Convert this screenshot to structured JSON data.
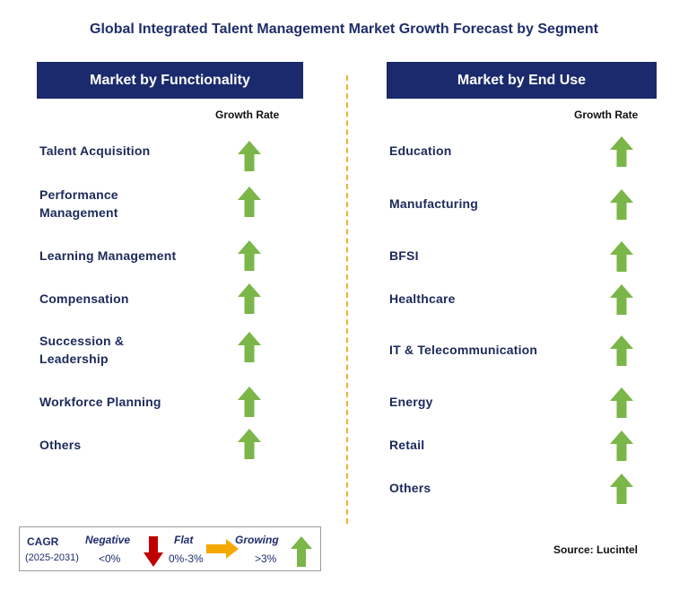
{
  "title": "Global Integrated Talent Management Market Growth Forecast by Segment",
  "left_panel": {
    "header": "Market by Functionality",
    "growth_rate_label": "Growth Rate",
    "items": [
      {
        "label": "Talent Acquisition",
        "trend": "growing"
      },
      {
        "label": "Performance\nManagement",
        "trend": "growing"
      },
      {
        "label": "Learning Management",
        "trend": "growing"
      },
      {
        "label": "Compensation",
        "trend": "growing"
      },
      {
        "label": "Succession &\nLeadership",
        "trend": "growing"
      },
      {
        "label": "Workforce Planning",
        "trend": "growing"
      },
      {
        "label": "Others",
        "trend": "growing"
      }
    ]
  },
  "right_panel": {
    "header": "Market by End Use",
    "growth_rate_label": "Growth Rate",
    "items": [
      {
        "label": "Education",
        "trend": "growing"
      },
      {
        "label": "Manufacturing",
        "trend": "growing"
      },
      {
        "label": "BFSI",
        "trend": "growing"
      },
      {
        "label": "Healthcare",
        "trend": "growing"
      },
      {
        "label": "IT & Telecommunication",
        "trend": "growing"
      },
      {
        "label": "Energy",
        "trend": "growing"
      },
      {
        "label": "Retail",
        "trend": "growing"
      },
      {
        "label": "Others",
        "trend": "growing"
      }
    ]
  },
  "legend": {
    "cagr": "CAGR",
    "period": "(2025-2031)",
    "negative": {
      "label": "Negative",
      "range": "<0%"
    },
    "flat": {
      "label": "Flat",
      "range": "0%-3%"
    },
    "growing": {
      "label": "Growing",
      "range": ">3%"
    }
  },
  "source": "Source: Lucintel",
  "colors": {
    "header_bg": "#1a2a6c",
    "growing_arrow": "#7ab648",
    "negative_arrow": "#c00000",
    "flat_arrow": "#f5a800",
    "divider": "#f0b030"
  }
}
